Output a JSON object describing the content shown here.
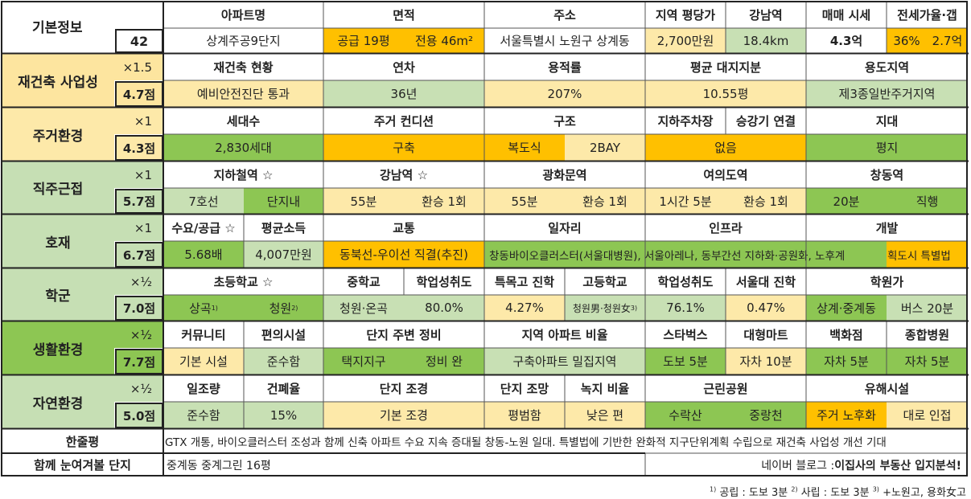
{
  "colors": {
    "white": "#ffffff",
    "orange": "#ffc000",
    "peach": "#fde9a9",
    "green": "#8dc653",
    "lightgreen": "#c8e0b4",
    "lightorange": "#fdd79a",
    "sec_orange": "#fde59f",
    "sec_peach": "#fde9a9",
    "sec_green_light": "#c6dfb4",
    "sec_green": "#8dc653"
  },
  "basic": {
    "section": "기본정보",
    "number": "42",
    "headers": [
      "아파트명",
      "면적",
      "주소",
      "지역 평당가",
      "강남역",
      "매매 시세",
      "전세가율·갭"
    ],
    "values": {
      "name": "상계주공9단지",
      "area_supply": "공급 19평",
      "area_private": "전용 46m²",
      "address": "서울특별시 노원구 상계동",
      "price_per_pyeong": "2,700만원",
      "gangnam": "18.4km",
      "sale_price": "4.3억",
      "jeonse_rate": "36%",
      "gap": "2.7억"
    }
  },
  "sections": [
    {
      "id": "rebuild",
      "title": "재건축 사업성",
      "mul": "×1.5",
      "score": "4.7점"
    },
    {
      "id": "living",
      "title": "주거환경",
      "mul": "×1",
      "score": "4.3점"
    },
    {
      "id": "commute",
      "title": "직주근접",
      "mul": "×1",
      "score": "5.7점"
    },
    {
      "id": "benefit",
      "title": "호재",
      "mul": "×1",
      "score": "6.7점"
    },
    {
      "id": "school",
      "title": "학군",
      "mul": "×½",
      "score": "7.0점"
    },
    {
      "id": "life",
      "title": "생활환경",
      "mul": "×½",
      "score": "7.7점"
    },
    {
      "id": "nature",
      "title": "자연환경",
      "mul": "×½",
      "score": "5.0점"
    }
  ],
  "rebuild": {
    "headers": [
      "재건축 현황",
      "연차",
      "용적률",
      "평균 대지지분",
      "용도지역"
    ],
    "values": [
      "예비안전진단 통과",
      "36년",
      "207%",
      "10.55평",
      "제3종일반주거지역"
    ]
  },
  "living": {
    "headers": [
      "세대수",
      "주거 컨디션",
      "구조",
      "지하주차장",
      "승강기 연결",
      "지대"
    ],
    "values": [
      "2,830세대",
      "구축",
      "복도식",
      "2BAY",
      "없음",
      "평지"
    ]
  },
  "commute": {
    "headers": [
      "지하철역 ☆",
      "강남역 ☆",
      "광화문역",
      "여의도역",
      "창동역"
    ],
    "values": [
      "7호선",
      "단지내",
      "55분",
      "환승 1회",
      "55분",
      "환승 1회",
      "1시간 5분",
      "환승 1회",
      "20분",
      "직행"
    ]
  },
  "benefit": {
    "headers": [
      "수요/공급 ☆",
      "평균소득",
      "교통",
      "일자리",
      "인프라",
      "개발"
    ],
    "values": [
      "5.68배",
      "4,007만원",
      "동북선-우이선 직결(추진)",
      "창동바이오클러스터(서울대병원), 서울아레나, 동부간선 지하화·공원화, 노후계",
      "획도시 특별법"
    ]
  },
  "school": {
    "headers": [
      "초등학교 ☆",
      "중학교",
      "학업성취도",
      "특목고 진학",
      "고등학교",
      "학업성취도",
      "서울대 진학",
      "학원가"
    ],
    "values": {
      "elem1": "상곡",
      "elem1_sup": "1)",
      "elem2": "청원",
      "elem2_sup": "2)",
      "middle": "청원·온곡",
      "middle_score": "80.0%",
      "special": "4.27%",
      "high": "청원男·청원女",
      "high_sup": "3)",
      "high_score": "76.1%",
      "snu": "0.47%",
      "academy1": "상계·중계동",
      "academy2": "버스 20분"
    }
  },
  "life": {
    "headers": [
      "커뮤니티",
      "편의시설",
      "단지 주변 정비",
      "지역 아파트 비율",
      "스타벅스",
      "대형마트",
      "백화점",
      "종합병원"
    ],
    "values": [
      "기본 시설",
      "준수함",
      "택지지구",
      "정비 완",
      "구축아파트 밀집지역",
      "도보 5분",
      "자차 10분",
      "자차 5분",
      "자차 5분"
    ]
  },
  "nature": {
    "headers": [
      "일조량",
      "건폐율",
      "단지 조경",
      "단지 조망",
      "녹지 비율",
      "근린공원",
      "유해시설"
    ],
    "values": [
      "준수함",
      "15%",
      "기본 조경",
      "평범함",
      "낮은 편",
      "수락산",
      "중랑천",
      "주거 노후화",
      "대로 인접"
    ]
  },
  "summary": {
    "label": "한줄평",
    "text": "GTX 개통, 바이오클러스터 조성과 함께 신축 아파트 수요 지속 증대될 창동-노원 일대. 특별법에 기반한 완화적 지구단위계획 수립으로 재건축 사업성 개선 기대"
  },
  "related": {
    "label": "함께 눈여겨볼 단지",
    "text": "중계동 중계그린 16평",
    "blog_prefix": "네이버 블로그 : ",
    "blog_name": "이집사의 부동산 입지분석!"
  },
  "footnote": {
    "n1": "1)",
    "t1": "공립 : 도보 3분",
    "n2": "2)",
    "t2": "사립 : 도보 3분",
    "n3": "3)",
    "t3": "+노원고, 용화女고"
  }
}
